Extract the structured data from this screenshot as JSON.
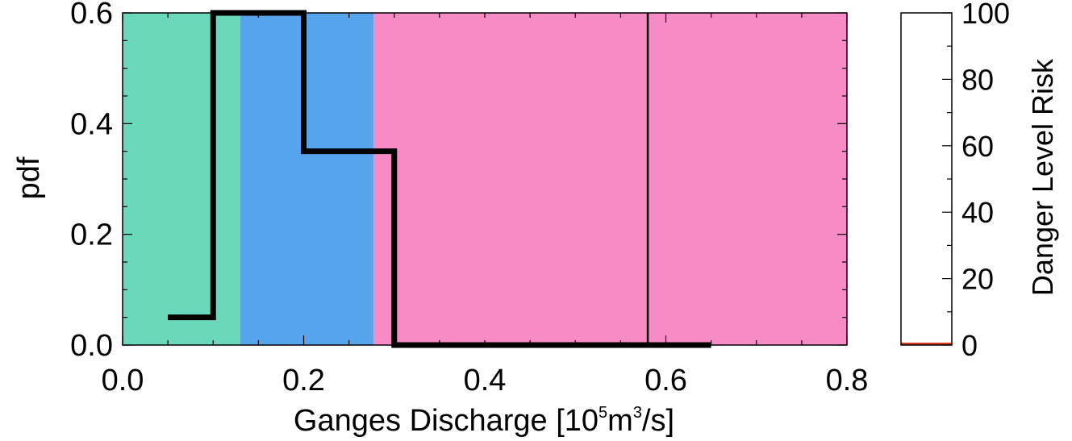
{
  "colors": {
    "band_low": "#6ad9ba",
    "band_mid": "#56a4ec",
    "band_high": "#f78bc6",
    "step_line": "#000000",
    "vline": "#000000",
    "risk_bar": "#d83a1e"
  },
  "chart_data": [
    {
      "type": "line",
      "title": "",
      "xlabel": "Ganges Discharge [10",
      "xlabel_sup1": "5",
      "xlabel_mid": "m",
      "xlabel_sup2": "3",
      "xlabel_end": "/s]",
      "ylabel": "pdf",
      "xlim": [
        0.0,
        0.8
      ],
      "ylim": [
        0.0,
        0.6
      ],
      "grid": false,
      "xticks": [
        {
          "value": 0.0,
          "label": "0.0"
        },
        {
          "value": 0.2,
          "label": "0.2"
        },
        {
          "value": 0.4,
          "label": "0.4"
        },
        {
          "value": 0.6,
          "label": "0.6"
        },
        {
          "value": 0.8,
          "label": "0.8"
        }
      ],
      "yticks": [
        {
          "value": 0.0,
          "label": "0.0"
        },
        {
          "value": 0.2,
          "label": "0.2"
        },
        {
          "value": 0.4,
          "label": "0.4"
        },
        {
          "value": 0.6,
          "label": "0.6"
        }
      ],
      "bands": [
        {
          "x0": 0.0,
          "x1": 0.13,
          "color_key": "band_low"
        },
        {
          "x0": 0.13,
          "x1": 0.277,
          "color_key": "band_mid"
        },
        {
          "x0": 0.277,
          "x1": 0.8,
          "color_key": "band_high"
        }
      ],
      "series": [
        {
          "x": [
            0.05,
            0.1,
            0.1,
            0.2,
            0.2,
            0.3,
            0.3,
            0.65
          ],
          "y": [
            0.05,
            0.05,
            0.6,
            0.6,
            0.35,
            0.35,
            0.0,
            0.0
          ]
        }
      ],
      "vline_x": 0.58
    },
    {
      "type": "bar",
      "ylabel": "Danger Level Risk",
      "ylim": [
        0,
        100
      ],
      "yticks": [
        {
          "value": 0,
          "label": "0"
        },
        {
          "value": 20,
          "label": "20"
        },
        {
          "value": 40,
          "label": "40"
        },
        {
          "value": 60,
          "label": "60"
        },
        {
          "value": 80,
          "label": "80"
        },
        {
          "value": 100,
          "label": "100"
        }
      ],
      "values": [
        0
      ]
    }
  ]
}
